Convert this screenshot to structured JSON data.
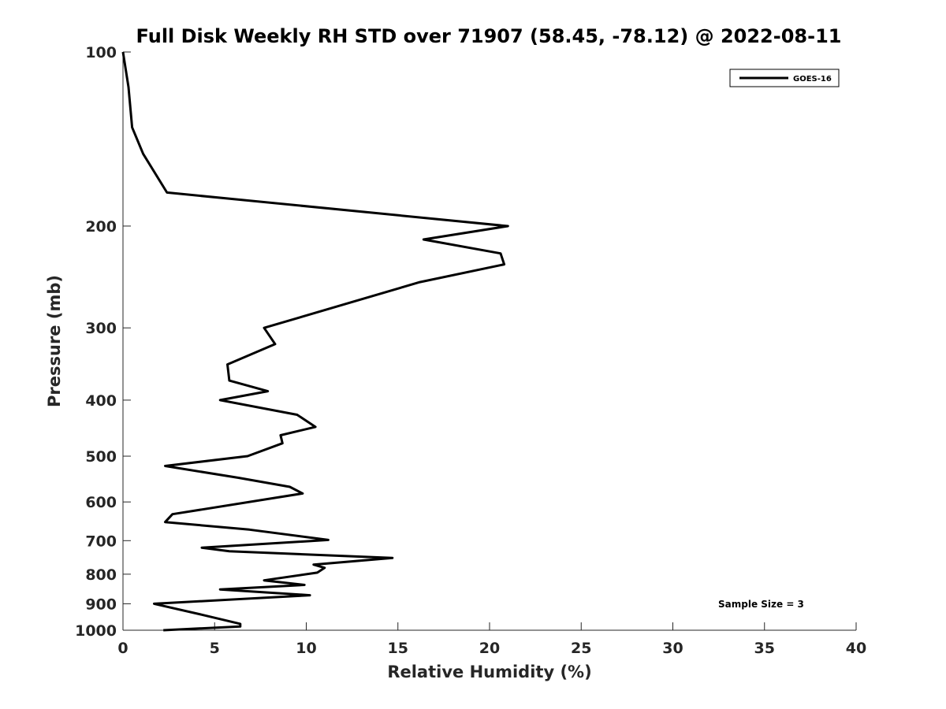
{
  "chart_data": {
    "type": "line",
    "title": "Full Disk Weekly RH STD over 71907 (58.45, -78.12) @ 2022-08-11",
    "xlabel": "Relative Humidity (%)",
    "ylabel": "Pressure (mb)",
    "xlim": [
      0,
      40
    ],
    "ylim": [
      100,
      1000
    ],
    "y_scale": "log",
    "y_reversed": true,
    "grid": false,
    "legend_position": "top-right",
    "x_ticks": [
      "0",
      "5",
      "10",
      "15",
      "20",
      "25",
      "30",
      "35",
      "40"
    ],
    "y_ticks": [
      "100",
      "200",
      "300",
      "400",
      "500",
      "600",
      "700",
      "800",
      "900",
      "1000"
    ],
    "annotation": "Sample Size = 3",
    "series": [
      {
        "name": "GOES-16",
        "color": "#000000",
        "points": [
          [
            0.0,
            100
          ],
          [
            0.3,
            115
          ],
          [
            0.5,
            135
          ],
          [
            1.1,
            150
          ],
          [
            2.4,
            175
          ],
          [
            21.0,
            200
          ],
          [
            16.4,
            211
          ],
          [
            20.6,
            223
          ],
          [
            20.8,
            233
          ],
          [
            16.2,
            250
          ],
          [
            7.7,
            300
          ],
          [
            8.3,
            320
          ],
          [
            5.7,
            347
          ],
          [
            5.8,
            370
          ],
          [
            7.9,
            386
          ],
          [
            5.3,
            400
          ],
          [
            9.5,
            424
          ],
          [
            10.5,
            445
          ],
          [
            8.6,
            460
          ],
          [
            8.7,
            475
          ],
          [
            6.8,
            500
          ],
          [
            2.3,
            520
          ],
          [
            6.3,
            545
          ],
          [
            9.1,
            565
          ],
          [
            9.8,
            580
          ],
          [
            2.7,
            630
          ],
          [
            2.3,
            650
          ],
          [
            6.9,
            670
          ],
          [
            11.2,
            698
          ],
          [
            4.3,
            720
          ],
          [
            5.8,
            730
          ],
          [
            14.7,
            750
          ],
          [
            10.4,
            770
          ],
          [
            11.0,
            780
          ],
          [
            10.6,
            795
          ],
          [
            7.7,
            820
          ],
          [
            9.9,
            835
          ],
          [
            5.3,
            850
          ],
          [
            10.2,
            870
          ],
          [
            1.7,
            900
          ],
          [
            4.3,
            940
          ],
          [
            6.4,
            975
          ],
          [
            6.4,
            985
          ],
          [
            2.2,
            1000
          ]
        ]
      }
    ]
  }
}
